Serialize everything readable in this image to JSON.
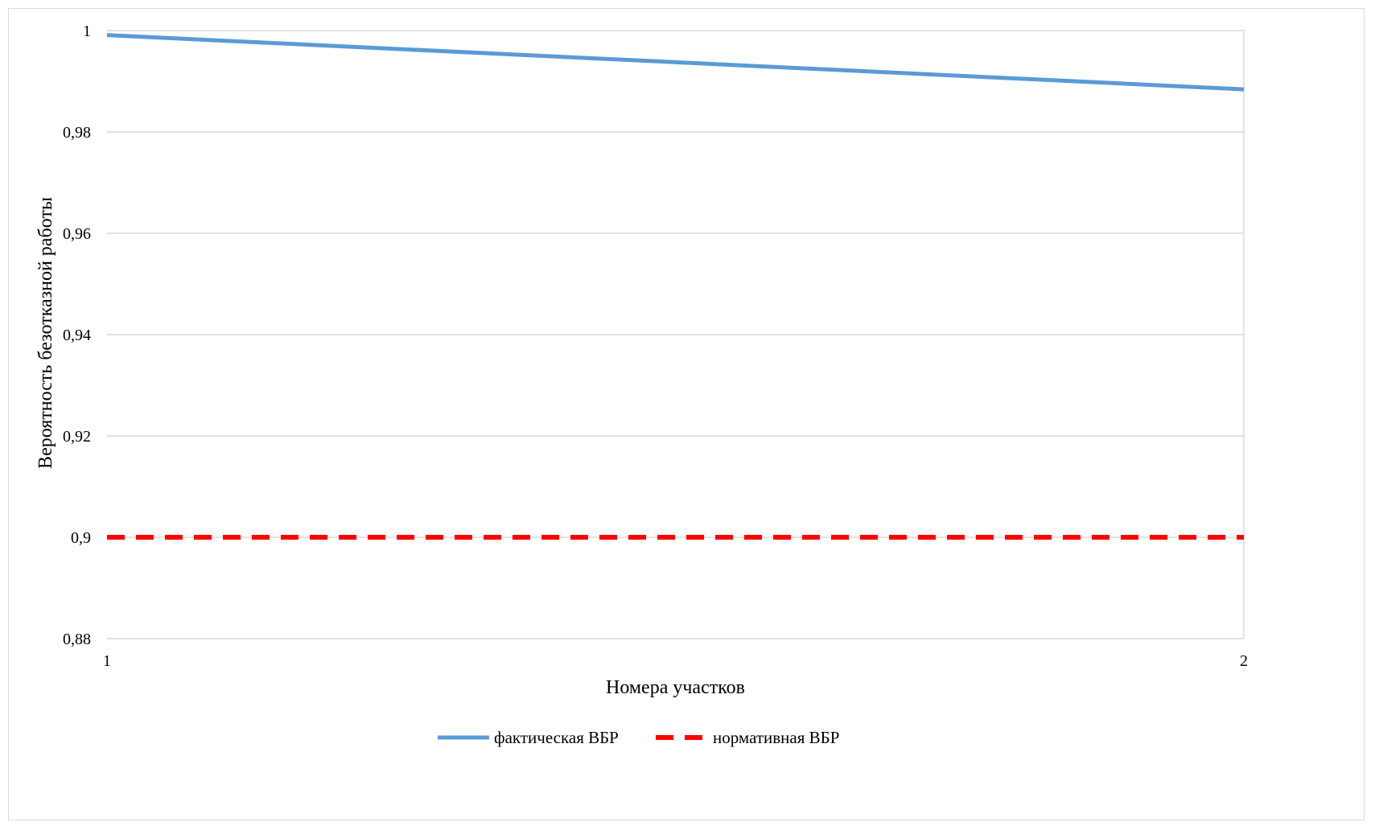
{
  "chart_data": {
    "type": "line",
    "x": [
      1,
      2
    ],
    "x_tick_labels": [
      "1",
      "2"
    ],
    "xlabel": "Номера участков",
    "ylabel": "Вероятность безотказной работы",
    "ylim": [
      0.88,
      1
    ],
    "y_ticks": [
      0.88,
      0.9,
      0.92,
      0.94,
      0.96,
      0.98,
      1
    ],
    "y_tick_labels": [
      "0,88",
      "0,9",
      "0,92",
      "0,94",
      "0,96",
      "0,98",
      "1"
    ],
    "grid": true,
    "legend_position": "bottom",
    "series": [
      {
        "name": "фактическая ВБР",
        "values": [
          0.9991,
          0.9884
        ],
        "color": "#5b9bd5",
        "style": "solid"
      },
      {
        "name": "нормативная ВБР",
        "values": [
          0.9,
          0.9
        ],
        "color": "#ff0000",
        "style": "dashed"
      }
    ]
  }
}
